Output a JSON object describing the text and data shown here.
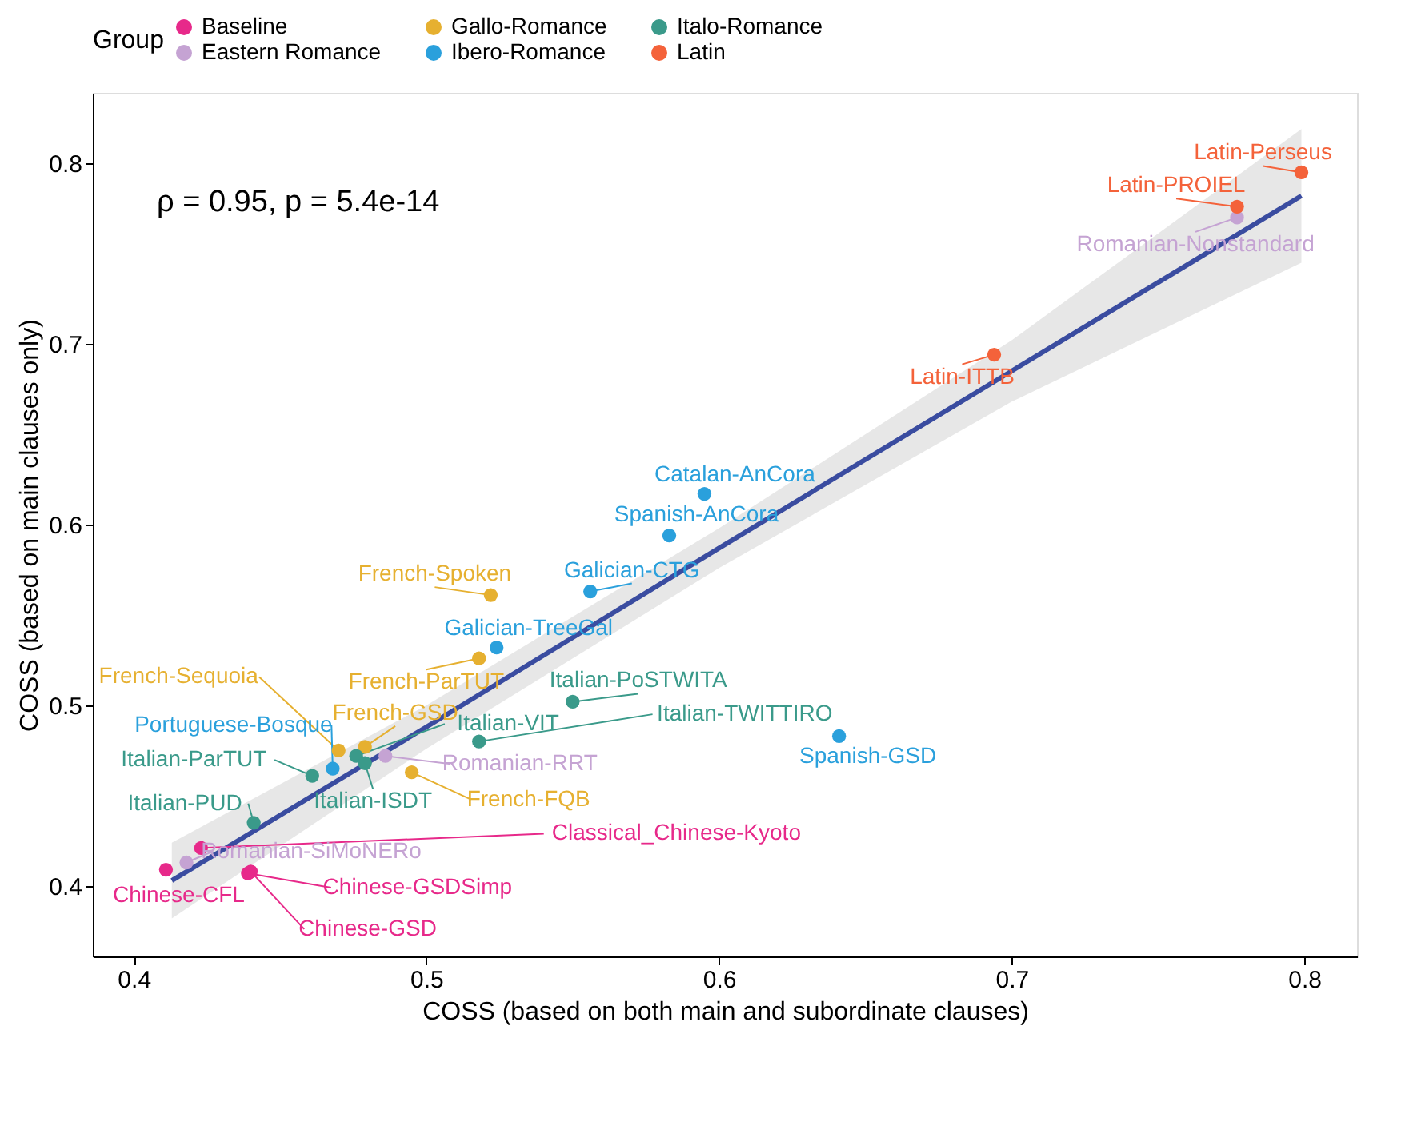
{
  "chart_data": {
    "type": "scatter",
    "xlabel": "COSS (based on both main and subordinate clauses)",
    "ylabel": "COSS (based on main clauses only)",
    "legend_title": "Group",
    "legend": "top",
    "grid": false,
    "marker": "circle",
    "xlim": [
      0.386,
      0.818
    ],
    "ylim": [
      0.361,
      0.839
    ],
    "xticks": [
      0.4,
      0.5,
      0.6,
      0.7,
      0.8
    ],
    "yticks": [
      0.4,
      0.5,
      0.6,
      0.7,
      0.8
    ],
    "series": [
      {
        "name": "Baseline",
        "color": "#e7298a",
        "x": [
          0.411,
          0.423,
          0.439,
          0.44
        ],
        "values": [
          0.409,
          0.421,
          0.407,
          0.408
        ]
      },
      {
        "name": "Eastern Romance",
        "color": "#c5a3d3",
        "x": [
          0.418,
          0.486,
          0.777
        ],
        "values": [
          0.413,
          0.472,
          0.77
        ]
      },
      {
        "name": "Gallo-Romance",
        "color": "#e6b030",
        "x": [
          0.47,
          0.479,
          0.495,
          0.518,
          0.522
        ],
        "values": [
          0.475,
          0.477,
          0.463,
          0.526,
          0.561
        ]
      },
      {
        "name": "Ibero-Romance",
        "color": "#2aa0dc",
        "x": [
          0.468,
          0.524,
          0.556,
          0.583,
          0.595,
          0.641
        ],
        "values": [
          0.465,
          0.532,
          0.563,
          0.594,
          0.617,
          0.483
        ]
      },
      {
        "name": "Italo-Romance",
        "color": "#3a9a8a",
        "x": [
          0.441,
          0.461,
          0.476,
          0.479,
          0.518,
          0.55
        ],
        "values": [
          0.435,
          0.461,
          0.472,
          0.468,
          0.48,
          0.502
        ]
      },
      {
        "name": "Latin",
        "color": "#f4623a",
        "x": [
          0.694,
          0.777,
          0.799
        ],
        "values": [
          0.694,
          0.776,
          0.795
        ]
      },
      {
        "type": "line",
        "marker": "none",
        "color": "#3a4ca0",
        "x": [
          0.413,
          0.5,
          0.6,
          0.7,
          0.799
        ],
        "values": [
          0.403,
          0.488,
          0.587,
          0.685,
          0.782
        ],
        "lower": [
          0.382,
          0.476,
          0.576,
          0.668,
          0.745
        ],
        "upper": [
          0.424,
          0.5,
          0.598,
          0.702,
          0.819
        ]
      }
    ],
    "annotations": [
      "ρ = 0.95, p = 5.4e-14",
      {
        "text": "Chinese-CFL",
        "x": 0.411,
        "y": 0.409
      },
      {
        "text": "Classical_Chinese-Kyoto",
        "x": 0.423,
        "y": 0.421
      },
      {
        "text": "Chinese-GSDSimp",
        "x": 0.439,
        "y": 0.407
      },
      {
        "text": "Chinese-GSD",
        "x": 0.44,
        "y": 0.408
      },
      {
        "text": "Romanian-SiMoNERo",
        "x": 0.418,
        "y": 0.413
      },
      {
        "text": "Romanian-RRT",
        "x": 0.486,
        "y": 0.472
      },
      {
        "text": "Romanian-Nonstandard",
        "x": 0.777,
        "y": 0.77
      },
      {
        "text": "French-Sequoia",
        "x": 0.47,
        "y": 0.475
      },
      {
        "text": "French-GSD",
        "x": 0.479,
        "y": 0.477
      },
      {
        "text": "French-FQB",
        "x": 0.495,
        "y": 0.463
      },
      {
        "text": "French-ParTUT",
        "x": 0.518,
        "y": 0.526
      },
      {
        "text": "French-Spoken",
        "x": 0.522,
        "y": 0.561
      },
      {
        "text": "Portuguese-Bosque",
        "x": 0.468,
        "y": 0.465
      },
      {
        "text": "Galician-TreeGal",
        "x": 0.524,
        "y": 0.532
      },
      {
        "text": "Galician-CTG",
        "x": 0.556,
        "y": 0.563
      },
      {
        "text": "Spanish-AnCora",
        "x": 0.583,
        "y": 0.594
      },
      {
        "text": "Catalan-AnCora",
        "x": 0.595,
        "y": 0.617
      },
      {
        "text": "Spanish-GSD",
        "x": 0.641,
        "y": 0.483
      },
      {
        "text": "Italian-PUD",
        "x": 0.441,
        "y": 0.435
      },
      {
        "text": "Italian-ParTUT",
        "x": 0.461,
        "y": 0.461
      },
      {
        "text": "Italian-VIT",
        "x": 0.476,
        "y": 0.472
      },
      {
        "text": "Italian-ISDT",
        "x": 0.479,
        "y": 0.468
      },
      {
        "text": "Italian-TWITTIRO",
        "x": 0.518,
        "y": 0.48
      },
      {
        "text": "Italian-PoSTWITA",
        "x": 0.55,
        "y": 0.502
      },
      {
        "text": "Latin-ITTB",
        "x": 0.694,
        "y": 0.694
      },
      {
        "text": "Latin-PROIEL",
        "x": 0.777,
        "y": 0.776
      },
      {
        "text": "Latin-Perseus",
        "x": 0.799,
        "y": 0.795
      }
    ]
  }
}
